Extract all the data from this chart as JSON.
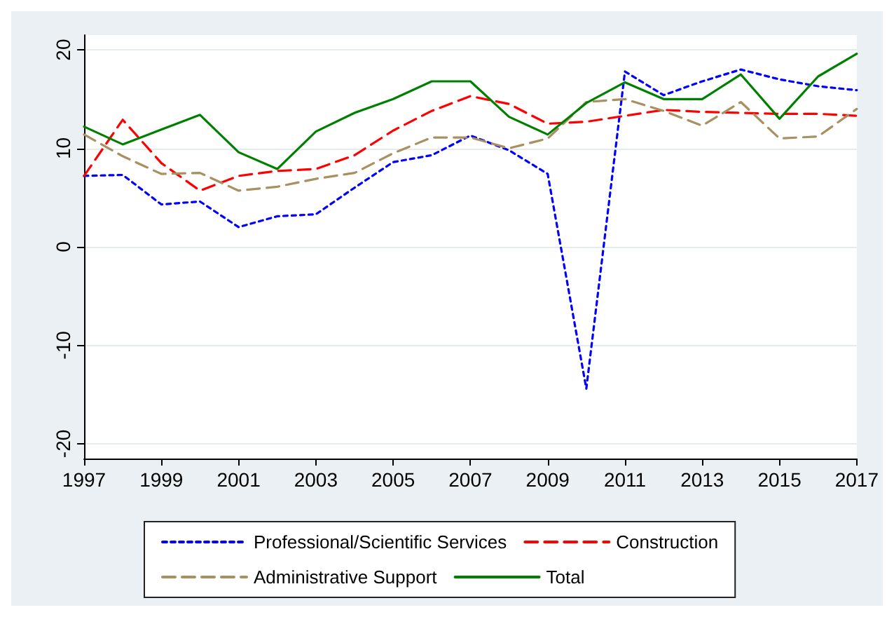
{
  "chart_data": {
    "type": "line",
    "x": [
      1997,
      1998,
      1999,
      2000,
      2001,
      2002,
      2003,
      2004,
      2005,
      2006,
      2007,
      2008,
      2009,
      2010,
      2011,
      2012,
      2013,
      2014,
      2015,
      2016,
      2017
    ],
    "series": [
      {
        "name": "Professional/Scientific Services",
        "color": "#0000ff",
        "line_style": "dotted",
        "values": [
          7.2,
          7.3,
          4.3,
          4.6,
          2.0,
          3.1,
          3.3,
          6.0,
          8.6,
          9.3,
          11.3,
          9.8,
          7.4,
          -14.4,
          17.8,
          15.4,
          16.8,
          18.0,
          17.0,
          16.3,
          15.9
        ]
      },
      {
        "name": "Construction",
        "color": "#ff0000",
        "line_style": "dashed",
        "values": [
          7.2,
          12.9,
          8.5,
          5.7,
          7.2,
          7.7,
          7.9,
          9.3,
          11.8,
          13.8,
          15.3,
          14.5,
          12.5,
          12.7,
          13.3,
          13.9,
          13.7,
          13.6,
          13.5,
          13.5,
          13.3
        ]
      },
      {
        "name": "Administrative Support",
        "color": "#a89060",
        "line_style": "dashed",
        "values": [
          11.4,
          9.2,
          7.4,
          7.5,
          5.7,
          6.1,
          6.9,
          7.5,
          9.5,
          11.1,
          11.1,
          10.0,
          11.0,
          14.7,
          15.0,
          13.8,
          12.3,
          14.7,
          11.0,
          11.2,
          14.0
        ]
      },
      {
        "name": "Total",
        "color": "#008000",
        "line_style": "solid",
        "values": [
          12.2,
          10.4,
          11.9,
          13.4,
          9.6,
          7.9,
          11.7,
          13.6,
          15.0,
          16.8,
          16.8,
          13.2,
          11.4,
          14.6,
          16.7,
          15.0,
          15.0,
          17.5,
          13.0,
          17.3,
          19.6
        ]
      }
    ],
    "xlim": [
      1997,
      2017
    ],
    "xticks": [
      1997,
      1999,
      2001,
      2003,
      2005,
      2007,
      2009,
      2011,
      2013,
      2015,
      2017
    ],
    "ylim": [
      -21.5,
      21.5
    ],
    "yticks": [
      -20,
      -10,
      0,
      10,
      20
    ],
    "grid": "y",
    "legend": "bottom",
    "marker": "none"
  }
}
